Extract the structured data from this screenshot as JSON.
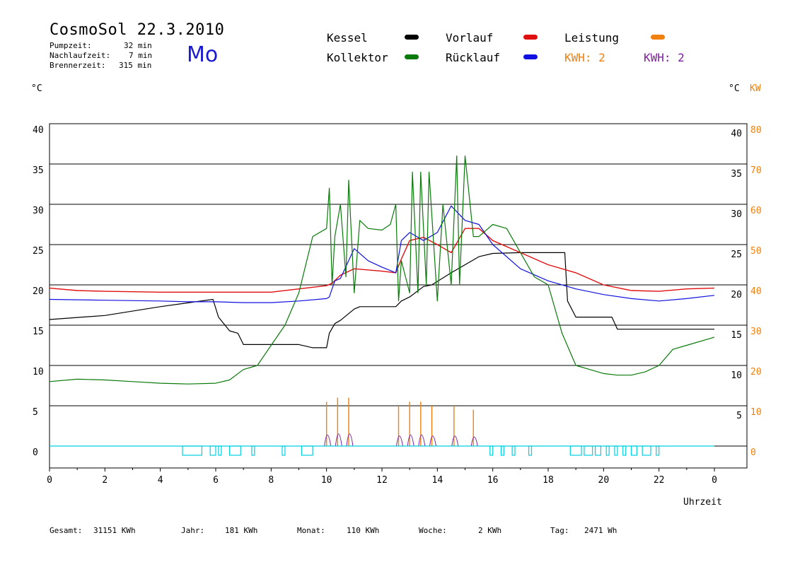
{
  "header": {
    "title": "CosmoSol 22.3.2010",
    "day": "Mo",
    "stats": [
      {
        "label": "Pumpzeit:",
        "value": "32 min"
      },
      {
        "label": "Nachlaufzeit:",
        "value": "7 min"
      },
      {
        "label": "Brennerzeit:",
        "value": "315 min"
      }
    ]
  },
  "legend": {
    "kessel": {
      "label": "Kessel",
      "color": "#000000"
    },
    "kollektor": {
      "label": "Kollektor",
      "color": "#0a7a0a"
    },
    "vorlauf": {
      "label": "Vorlauf",
      "color": "#e01010"
    },
    "ruecklauf": {
      "label": "Rücklauf",
      "color": "#1010e0"
    },
    "leistung": {
      "label": "Leistung",
      "color": "#f08010"
    },
    "kwh1": {
      "label": "KWH: 2",
      "color": "#f08010"
    },
    "kwh2": {
      "label": "KWH: 2",
      "color": "#8020a0"
    }
  },
  "axes": {
    "left_unit": "°C",
    "right_unit_c": "°C",
    "right_unit_kw": "KW",
    "xlabel": "Uhrzeit"
  },
  "footer": [
    {
      "label": "Gesamt:",
      "value": "31151 KWh"
    },
    {
      "label": "Jahr:",
      "value": "181 KWh"
    },
    {
      "label": "Monat:",
      "value": "110 KWh"
    },
    {
      "label": "Woche:",
      "value": "2 KWh"
    },
    {
      "label": "Tag:",
      "value": "2471 Wh"
    }
  ],
  "chart_data": {
    "type": "line",
    "x_ticks": [
      "0",
      "2",
      "4",
      "6",
      "8",
      "10",
      "12",
      "14",
      "16",
      "18",
      "20",
      "22",
      "0"
    ],
    "y_ticks_left": [
      "40",
      "35",
      "30",
      "25",
      "20",
      "15",
      "10",
      "5",
      "0"
    ],
    "y_ticks_right_c": [
      "40",
      "35",
      "30",
      "25",
      "20",
      "15",
      "10",
      "5"
    ],
    "y_ticks_right_kw": [
      "80",
      "70",
      "60",
      "50",
      "40",
      "30",
      "20",
      "10",
      "0"
    ],
    "xlim": [
      0,
      24
    ],
    "ylim": [
      0,
      40
    ],
    "grid": true,
    "series": [
      {
        "name": "Kessel",
        "color": "#000000",
        "x": [
          0,
          2,
          4,
          5.9,
          6.1,
          6.5,
          6.8,
          7,
          8,
          9,
          9.5,
          10,
          10.1,
          10.3,
          10.5,
          11,
          11.2,
          12,
          12.5,
          12.7,
          13,
          13.5,
          13.8,
          14.5,
          15.5,
          16,
          17,
          18,
          18.6,
          18.7,
          19,
          20,
          20.3,
          20.5,
          21,
          22,
          24
        ],
        "y": [
          15.7,
          16.2,
          17.3,
          18.2,
          16,
          14.3,
          14,
          12.6,
          12.6,
          12.6,
          12.2,
          12.2,
          14,
          15.2,
          15.6,
          17,
          17.3,
          17.3,
          17.3,
          18,
          18.5,
          19.8,
          20,
          21.5,
          23.5,
          23.9,
          24,
          24,
          24,
          18,
          16,
          16,
          16,
          14.5,
          14.5,
          14.5,
          14.5
        ],
        "lw": 1.2
      },
      {
        "name": "Vorlauf",
        "color": "#e01010",
        "x": [
          0,
          1,
          2,
          4,
          6,
          8,
          9,
          10,
          10.2,
          10.5,
          11,
          12,
          12.5,
          12.7,
          13,
          13.5,
          14,
          14.5,
          15,
          15.5,
          16,
          17,
          18,
          19,
          20,
          21,
          22,
          23,
          24
        ],
        "y": [
          19.6,
          19.3,
          19.2,
          19.1,
          19.1,
          19.1,
          19.5,
          19.9,
          20.2,
          21.2,
          22,
          21.7,
          21.5,
          23.2,
          25.5,
          25.9,
          25,
          24,
          27,
          27,
          25.5,
          24,
          22.5,
          21.5,
          20,
          19.3,
          19.2,
          19.5,
          19.6
        ],
        "lw": 1.4
      },
      {
        "name": "Rücklauf",
        "color": "#1010e0",
        "x": [
          0,
          2,
          4,
          5,
          6,
          7,
          8,
          9,
          10,
          10.1,
          10.3,
          10.5,
          11,
          11.5,
          12,
          12.5,
          12.7,
          13,
          13.5,
          14,
          14.5,
          15,
          15.5,
          16,
          17,
          18,
          19,
          20,
          21,
          22,
          23,
          24
        ],
        "y": [
          18.2,
          18.1,
          18,
          17.9,
          17.9,
          17.8,
          17.8,
          18,
          18.3,
          18.5,
          20.5,
          20.8,
          24.5,
          23,
          22.2,
          21.5,
          25.5,
          26.5,
          25.5,
          26.5,
          29.8,
          28,
          27.5,
          25,
          22,
          20.5,
          19.5,
          18.8,
          18.3,
          18,
          18.3,
          18.7
        ],
        "lw": 1.2
      },
      {
        "name": "Kollektor",
        "color": "#0a7a0a",
        "x": [
          0,
          1,
          2,
          3,
          4,
          5,
          6,
          6.5,
          7,
          7.5,
          8,
          8.5,
          9,
          9.5,
          10,
          10.1,
          10.2,
          10.3,
          10.5,
          10.7,
          10.8,
          11,
          11.2,
          11.5,
          12,
          12.3,
          12.5,
          12.6,
          12.7,
          13,
          13.1,
          13.3,
          13.4,
          13.6,
          13.7,
          14,
          14.2,
          14.5,
          14.7,
          14.8,
          15,
          15.3,
          15.5,
          16,
          16.5,
          17,
          17.5,
          18,
          18.5,
          19,
          19.5,
          20,
          20.5,
          21,
          21.5,
          22,
          22.5,
          23,
          24
        ],
        "y": [
          8,
          8.3,
          8.2,
          8,
          7.8,
          7.7,
          7.8,
          8.2,
          9.5,
          10,
          12.5,
          15,
          19,
          26,
          27,
          32,
          20,
          26,
          30,
          21,
          33,
          19,
          28,
          27,
          26.8,
          27.5,
          30,
          18,
          23,
          19,
          34,
          19,
          34,
          20,
          34,
          18,
          30,
          20,
          36,
          20,
          36,
          26,
          26,
          27.5,
          27,
          24,
          21,
          20,
          14,
          10,
          9.5,
          9,
          8.8,
          8.8,
          9.2,
          10,
          12,
          12.5,
          13.5
        ],
        "lw": 1.2
      }
    ],
    "leistung_spikes_kw": [
      {
        "x": 10.0,
        "kw": 11
      },
      {
        "x": 10.4,
        "kw": 12
      },
      {
        "x": 10.8,
        "kw": 12
      },
      {
        "x": 12.6,
        "kw": 10
      },
      {
        "x": 13.0,
        "kw": 11
      },
      {
        "x": 13.4,
        "kw": 11
      },
      {
        "x": 13.8,
        "kw": 10
      },
      {
        "x": 14.6,
        "kw": 10
      },
      {
        "x": 15.3,
        "kw": 9
      }
    ],
    "pump_pulses": [
      [
        4.8,
        5.5
      ],
      [
        5.8,
        6.0
      ],
      [
        6.1,
        6.2
      ],
      [
        6.5,
        6.9
      ],
      [
        7.3,
        7.4
      ],
      [
        8.4,
        8.5
      ],
      [
        9.1,
        9.5
      ],
      [
        15.9,
        16.0
      ],
      [
        16.3,
        16.4
      ],
      [
        16.7,
        16.8
      ],
      [
        17.3,
        17.4
      ],
      [
        18.8,
        19.2
      ],
      [
        19.3,
        19.6
      ],
      [
        19.7,
        19.9
      ],
      [
        20.1,
        20.2
      ],
      [
        20.4,
        20.5
      ],
      [
        20.7,
        20.8
      ],
      [
        21.0,
        21.2
      ],
      [
        21.4,
        21.7
      ],
      [
        21.9,
        22.0
      ]
    ]
  }
}
